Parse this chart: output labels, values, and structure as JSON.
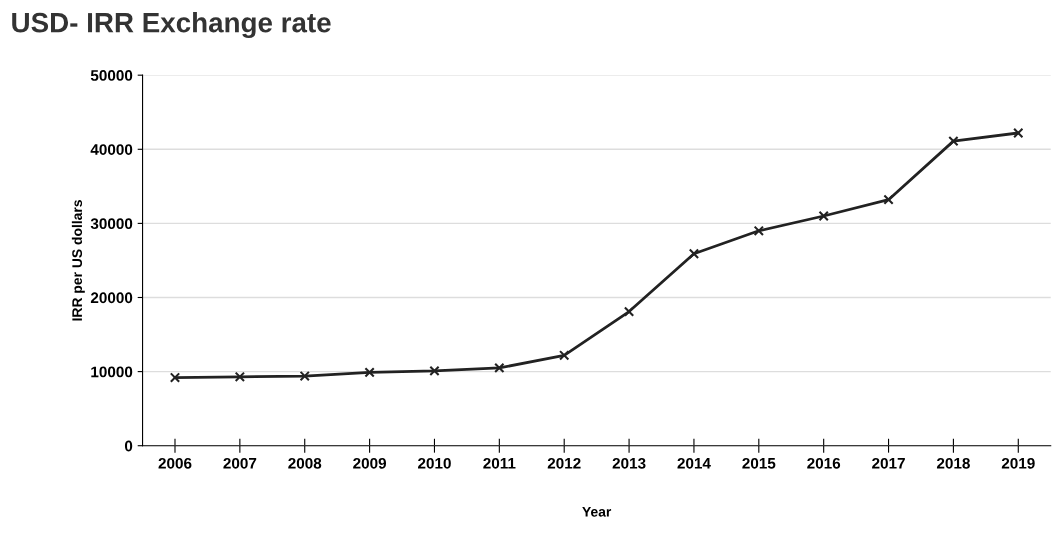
{
  "chart_data": {
    "type": "line",
    "title": "USD- IRR Exchange rate",
    "xlabel": "Year",
    "ylabel": "IRR per US dollars",
    "categories": [
      "2006",
      "2007",
      "2008",
      "2009",
      "2010",
      "2011",
      "2012",
      "2013",
      "2014",
      "2015",
      "2016",
      "2017",
      "2018",
      "2019"
    ],
    "series": [
      {
        "color": "#222222",
        "values": [
          9200,
          9300,
          9400,
          9900,
          10100,
          10500,
          12200,
          18100,
          25900,
          29000,
          31000,
          33200,
          41100,
          42200
        ]
      }
    ],
    "ylim": [
      0,
      50000
    ],
    "yticks": [
      0,
      10000,
      20000,
      30000,
      40000,
      50000
    ],
    "grid": "y",
    "marker": "cross",
    "line_style": "solid",
    "legend": false
  }
}
